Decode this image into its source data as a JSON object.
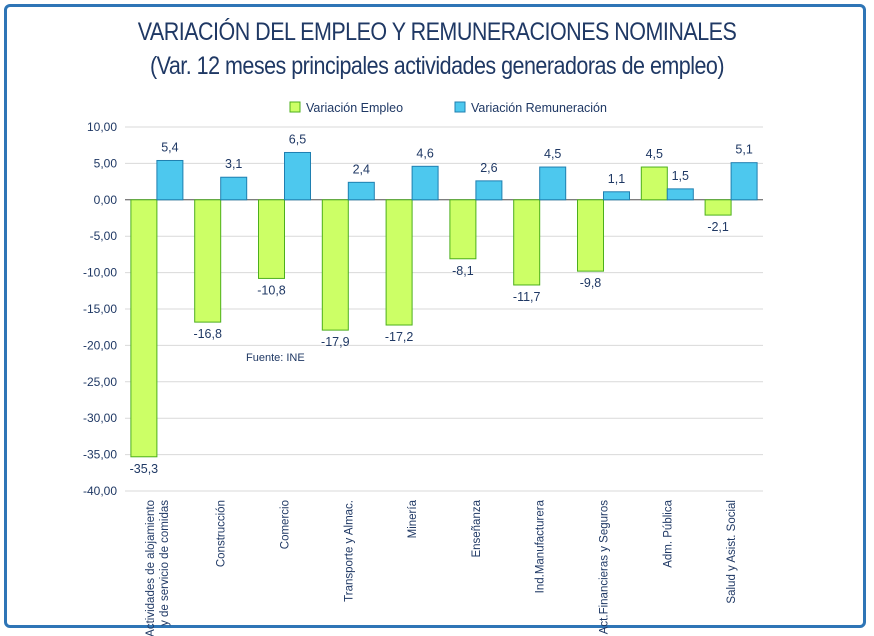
{
  "chart_data": {
    "type": "bar",
    "title": "VARIACIÓN DEL EMPLEO Y REMUNERACIONES NOMINALES",
    "subtitle": "(Var. 12 meses principales actividades generadoras de empleo)",
    "source_note": "Fuente: INE",
    "categories": [
      [
        "Actividades de alojamiento",
        "y de servicio de comidas"
      ],
      [
        "Construcción"
      ],
      [
        "Comercio"
      ],
      [
        "Transporte y Almac."
      ],
      [
        "Minería"
      ],
      [
        "Enseñanza"
      ],
      [
        "Ind.Manufacturera"
      ],
      [
        "Act.Financieras y Seguros"
      ],
      [
        "Adm. Pública"
      ],
      [
        "Salud y Asist. Social"
      ]
    ],
    "series": [
      {
        "name": "Variación Empleo",
        "values": [
          -35.3,
          -16.8,
          -10.8,
          -17.9,
          -17.2,
          -8.1,
          -11.7,
          -9.8,
          4.5,
          -2.1
        ],
        "labels": [
          "-35,3",
          "-16,8",
          "-10,8",
          "-17,9",
          "-17,2",
          "-8,1",
          "-11,7",
          "-9,8",
          "4,5",
          "-2,1"
        ],
        "color": "#ccff66",
        "stroke": "#4caf1c"
      },
      {
        "name": "Variación Remuneración",
        "values": [
          5.4,
          3.1,
          6.5,
          2.4,
          4.6,
          2.6,
          4.5,
          1.1,
          1.5,
          5.1
        ],
        "labels": [
          "5,4",
          "3,1",
          "6,5",
          "2,4",
          "4,6",
          "2,6",
          "4,5",
          "1,1",
          "1,5",
          "5,1"
        ],
        "color": "#4dc8ee",
        "stroke": "#1f7fb0"
      }
    ],
    "yticks": [
      10,
      5,
      0,
      -5,
      -10,
      -15,
      -20,
      -25,
      -30,
      -35,
      -40
    ],
    "ytick_labels": [
      "10,00",
      "5,00",
      "0,00",
      "-5,00",
      "-10,00",
      "-15,00",
      "-20,00",
      "-25,00",
      "-30,00",
      "-35,00",
      "-40,00"
    ],
    "ylim": [
      -40,
      10
    ],
    "grid": true,
    "legend_position": "top-center"
  }
}
